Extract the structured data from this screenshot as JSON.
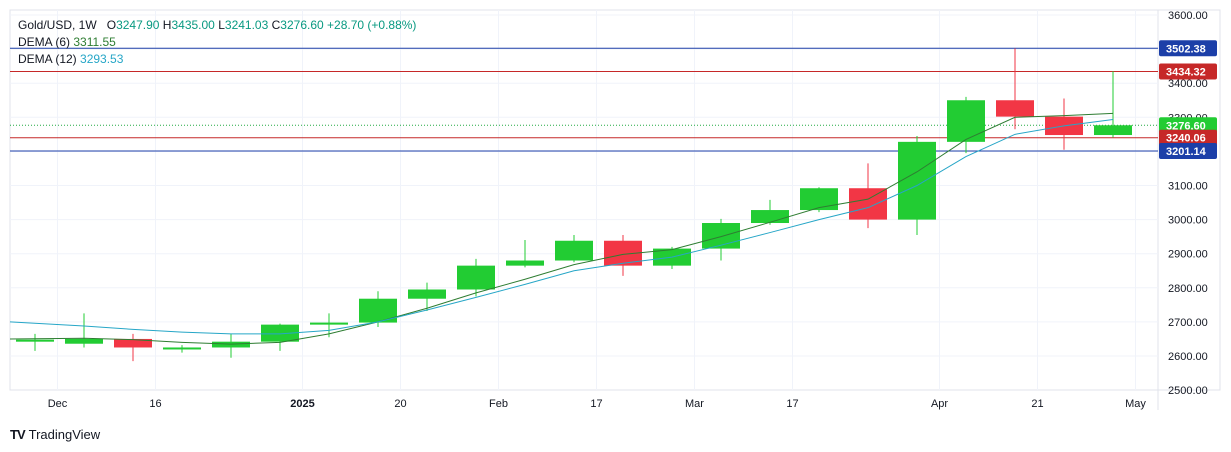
{
  "legend": {
    "symbol": "Gold/USD, 1W",
    "open_label": "O",
    "open": "3247.90",
    "high_label": "H",
    "high": "3435.00",
    "low_label": "L",
    "low": "3241.03",
    "close_label": "C",
    "close": "3276.60",
    "change": "+28.70 (+0.88%)",
    "dema6_label": "DEMA (6)",
    "dema6_value": "3311.55",
    "dema12_label": "DEMA (12)",
    "dema12_value": "3293.53"
  },
  "brand": {
    "logo": "TV",
    "name": "TradingView"
  },
  "colors": {
    "up": "#22cc33",
    "down": "#f23645",
    "dema6": "#2e7d32",
    "dema12": "#26a6c7",
    "line_blue": "#1c3fa8",
    "line_red": "#c62828",
    "close_line": "#22aa44"
  },
  "chart_data": {
    "type": "candlestick",
    "y_ticks": [
      "3600.00",
      "3500.00",
      "3400.00",
      "3300.00",
      "3200.00",
      "3100.00",
      "3000.00",
      "2900.00",
      "2800.00",
      "2700.00",
      "2600.00",
      "2500.00"
    ],
    "ylim": [
      2500,
      3600
    ],
    "x_ticks": [
      {
        "label": "Dec",
        "index": 0.5
      },
      {
        "label": "16",
        "index": 2.5
      },
      {
        "label": "2025",
        "index": 5.5
      },
      {
        "label": "20",
        "index": 7.5
      },
      {
        "label": "Feb",
        "index": 9.5
      },
      {
        "label": "17",
        "index": 11.5
      },
      {
        "label": "Mar",
        "index": 13.5
      },
      {
        "label": "17",
        "index": 15.5
      },
      {
        "label": "Apr",
        "index": 18.5
      },
      {
        "label": "21",
        "index": 20.5
      },
      {
        "label": "May",
        "index": 22.5
      }
    ],
    "candles": [
      {
        "o": 2642,
        "h": 2665,
        "l": 2615,
        "c": 2648
      },
      {
        "o": 2636,
        "h": 2725,
        "l": 2625,
        "c": 2650
      },
      {
        "o": 2650,
        "h": 2665,
        "l": 2585,
        "c": 2625
      },
      {
        "o": 2625,
        "h": 2632,
        "l": 2610,
        "c": 2625
      },
      {
        "o": 2625,
        "h": 2665,
        "l": 2595,
        "c": 2642
      },
      {
        "o": 2642,
        "h": 2695,
        "l": 2615,
        "c": 2692
      },
      {
        "o": 2692,
        "h": 2725,
        "l": 2655,
        "c": 2698
      },
      {
        "o": 2698,
        "h": 2790,
        "l": 2685,
        "c": 2768
      },
      {
        "o": 2768,
        "h": 2815,
        "l": 2732,
        "c": 2795
      },
      {
        "o": 2795,
        "h": 2885,
        "l": 2775,
        "c": 2865
      },
      {
        "o": 2865,
        "h": 2940,
        "l": 2860,
        "c": 2880
      },
      {
        "o": 2880,
        "h": 2955,
        "l": 2875,
        "c": 2938
      },
      {
        "o": 2938,
        "h": 2955,
        "l": 2835,
        "c": 2865
      },
      {
        "o": 2865,
        "h": 2920,
        "l": 2855,
        "c": 2915
      },
      {
        "o": 2915,
        "h": 3002,
        "l": 2880,
        "c": 2990
      },
      {
        "o": 2990,
        "h": 3058,
        "l": 2985,
        "c": 3028
      },
      {
        "o": 3028,
        "h": 3095,
        "l": 3022,
        "c": 3092
      },
      {
        "o": 3092,
        "h": 3165,
        "l": 2975,
        "c": 3000
      },
      {
        "o": 3000,
        "h": 3245,
        "l": 2955,
        "c": 3228
      },
      {
        "o": 3228,
        "h": 3360,
        "l": 3195,
        "c": 3350
      },
      {
        "o": 3350,
        "h": 3502,
        "l": 3265,
        "c": 3302
      },
      {
        "o": 3302,
        "h": 3355,
        "l": 3205,
        "c": 3248
      },
      {
        "o": 3248,
        "h": 3435,
        "l": 3241,
        "c": 3276.6
      }
    ],
    "series": [
      {
        "name": "DEMA (6)",
        "values": [
          2650,
          2652,
          2648,
          2640,
          2635,
          2640,
          2665,
          2700,
          2740,
          2785,
          2825,
          2868,
          2898,
          2912,
          2950,
          2992,
          3035,
          3060,
          3140,
          3235,
          3300,
          3305,
          3311.55
        ]
      },
      {
        "name": "DEMA (12)",
        "values": [
          2700,
          2688,
          2678,
          2670,
          2665,
          2665,
          2675,
          2700,
          2735,
          2772,
          2810,
          2850,
          2872,
          2890,
          2925,
          2962,
          3000,
          3035,
          3100,
          3185,
          3250,
          3275,
          3293.53
        ]
      }
    ],
    "price_lines": [
      {
        "value": 3502.38,
        "label": "3502.38",
        "color": "line_blue"
      },
      {
        "value": 3434.32,
        "label": "3434.32",
        "color": "line_red"
      },
      {
        "value": 3276.6,
        "label": "3276.60",
        "color": "close_line"
      },
      {
        "value": 3240.06,
        "label": "3240.06",
        "color": "line_red"
      },
      {
        "value": 3201.14,
        "label": "3201.14",
        "color": "line_blue"
      }
    ]
  }
}
